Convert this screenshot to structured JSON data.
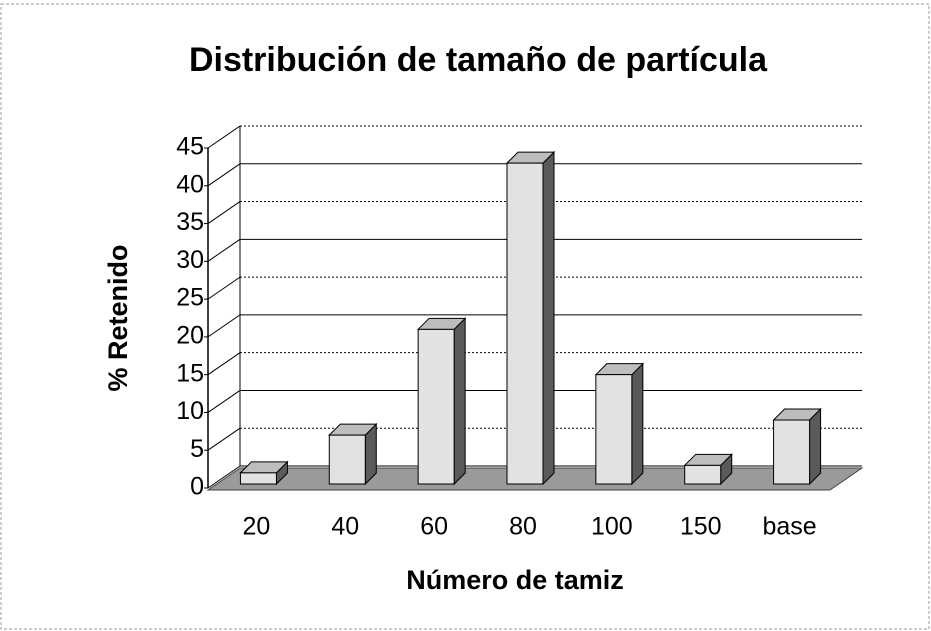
{
  "chart_data": {
    "type": "bar3d",
    "title": "Distribución de tamaño de partícula",
    "x_label": "Número de tamiz",
    "y_label": "% Retenido",
    "categories": [
      "20",
      "40",
      "60",
      "80",
      "100",
      "150",
      "base"
    ],
    "values": [
      2,
      7,
      21,
      43,
      15,
      3,
      9
    ],
    "color": "#e2e2e2",
    "ylim": [
      0,
      45
    ],
    "yticks": [
      0,
      5,
      10,
      15,
      20,
      25,
      30,
      35,
      40,
      45
    ],
    "grid": true
  }
}
